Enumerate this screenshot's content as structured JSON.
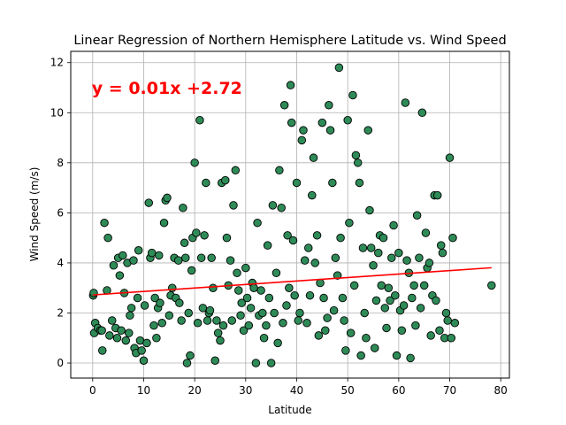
{
  "chart_data": {
    "type": "scatter",
    "title": "Linear Regression of Northern Hemisphere Latitude vs. Wind Speed",
    "xlabel": "Latitude",
    "ylabel": "Wind Speed (m/s)",
    "xlim": [
      -4.3,
      81.7
    ],
    "ylim": [
      -0.6,
      12.45
    ],
    "xticks": [
      0,
      10,
      20,
      30,
      40,
      50,
      60,
      70,
      80
    ],
    "yticks": [
      0,
      2,
      4,
      6,
      8,
      10,
      12
    ],
    "grid": true,
    "annotation": {
      "text": "y = 0.01x +2.72",
      "x": 0,
      "y": 11.0,
      "color": "#ff0000"
    },
    "regression": {
      "slope": 0.0139,
      "intercept": 2.72,
      "x_range": [
        0,
        78.2
      ],
      "color": "#ff0000"
    },
    "point_color": "#2e8b57",
    "point_edge_color": "#000000",
    "points": [
      [
        0.1,
        2.7
      ],
      [
        0.2,
        2.8
      ],
      [
        0.5,
        1.6
      ],
      [
        0.3,
        1.2
      ],
      [
        1.0,
        1.4
      ],
      [
        1.5,
        1.3
      ],
      [
        1.9,
        0.5
      ],
      [
        1.8,
        1.3
      ],
      [
        2.3,
        5.6
      ],
      [
        2.8,
        2.9
      ],
      [
        3.0,
        5.0
      ],
      [
        3.3,
        1.1
      ],
      [
        3.8,
        1.7
      ],
      [
        4.1,
        3.9
      ],
      [
        4.5,
        1.4
      ],
      [
        4.8,
        1.0
      ],
      [
        5.0,
        4.2
      ],
      [
        5.3,
        3.5
      ],
      [
        5.6,
        1.3
      ],
      [
        5.9,
        4.3
      ],
      [
        6.2,
        2.8
      ],
      [
        6.5,
        0.9
      ],
      [
        6.8,
        4.0
      ],
      [
        7.1,
        1.2
      ],
      [
        7.3,
        1.9
      ],
      [
        7.6,
        2.2
      ],
      [
        8.0,
        4.1
      ],
      [
        8.2,
        0.6
      ],
      [
        8.5,
        0.4
      ],
      [
        8.8,
        2.6
      ],
      [
        9.0,
        4.5
      ],
      [
        9.3,
        0.9
      ],
      [
        9.6,
        0.5
      ],
      [
        10.0,
        0.1
      ],
      [
        10.2,
        2.3
      ],
      [
        10.6,
        0.8
      ],
      [
        11.0,
        6.4
      ],
      [
        11.3,
        4.2
      ],
      [
        11.6,
        4.4
      ],
      [
        12.0,
        1.5
      ],
      [
        12.2,
        2.6
      ],
      [
        12.5,
        1.0
      ],
      [
        12.8,
        2.2
      ],
      [
        13.0,
        4.3
      ],
      [
        13.2,
        2.4
      ],
      [
        13.6,
        1.6
      ],
      [
        14.0,
        5.6
      ],
      [
        14.3,
        6.5
      ],
      [
        14.6,
        6.6
      ],
      [
        15.0,
        1.9
      ],
      [
        15.3,
        2.7
      ],
      [
        15.6,
        3.0
      ],
      [
        16.0,
        4.2
      ],
      [
        16.3,
        2.6
      ],
      [
        16.8,
        4.1
      ],
      [
        17.0,
        2.4
      ],
      [
        17.4,
        1.7
      ],
      [
        17.7,
        6.2
      ],
      [
        18.0,
        4.8
      ],
      [
        18.2,
        4.2
      ],
      [
        18.5,
        0.0
      ],
      [
        18.8,
        2.0
      ],
      [
        19.1,
        0.3
      ],
      [
        19.4,
        3.7
      ],
      [
        19.6,
        5.0
      ],
      [
        20.0,
        8.0
      ],
      [
        20.3,
        5.2
      ],
      [
        20.6,
        1.6
      ],
      [
        21.0,
        9.7
      ],
      [
        21.3,
        4.2
      ],
      [
        21.6,
        2.2
      ],
      [
        21.9,
        5.1
      ],
      [
        22.2,
        7.2
      ],
      [
        22.5,
        1.7
      ],
      [
        22.8,
        2.0
      ],
      [
        23.0,
        2.1
      ],
      [
        23.3,
        4.2
      ],
      [
        23.6,
        3.0
      ],
      [
        24.0,
        0.1
      ],
      [
        24.3,
        1.7
      ],
      [
        24.6,
        1.2
      ],
      [
        25.0,
        0.9
      ],
      [
        25.3,
        7.2
      ],
      [
        25.6,
        1.5
      ],
      [
        26.0,
        7.3
      ],
      [
        26.3,
        5.0
      ],
      [
        26.6,
        3.1
      ],
      [
        27.0,
        4.1
      ],
      [
        27.3,
        1.7
      ],
      [
        27.6,
        6.3
      ],
      [
        28.0,
        7.7
      ],
      [
        28.3,
        3.6
      ],
      [
        28.6,
        2.9
      ],
      [
        29.0,
        1.9
      ],
      [
        29.2,
        2.4
      ],
      [
        29.6,
        1.3
      ],
      [
        30.0,
        3.8
      ],
      [
        30.3,
        2.6
      ],
      [
        30.6,
        1.5
      ],
      [
        31.0,
        2.2
      ],
      [
        31.3,
        3.2
      ],
      [
        31.6,
        3.0
      ],
      [
        32.0,
        0.0
      ],
      [
        32.3,
        5.6
      ],
      [
        32.6,
        1.9
      ],
      [
        33.0,
        2.9
      ],
      [
        33.3,
        2.0
      ],
      [
        33.6,
        1.0
      ],
      [
        34.0,
        1.5
      ],
      [
        34.3,
        4.7
      ],
      [
        34.6,
        2.6
      ],
      [
        35.0,
        0.0
      ],
      [
        35.3,
        6.3
      ],
      [
        35.6,
        2.0
      ],
      [
        36.0,
        3.6
      ],
      [
        36.3,
        0.8
      ],
      [
        36.6,
        7.7
      ],
      [
        37.0,
        6.2
      ],
      [
        37.3,
        1.6
      ],
      [
        37.6,
        10.3
      ],
      [
        38.0,
        2.3
      ],
      [
        38.2,
        5.1
      ],
      [
        38.5,
        3.0
      ],
      [
        38.8,
        11.1
      ],
      [
        39.0,
        9.6
      ],
      [
        39.3,
        4.9
      ],
      [
        39.6,
        2.7
      ],
      [
        40.0,
        7.2
      ],
      [
        40.3,
        1.7
      ],
      [
        40.6,
        2.0
      ],
      [
        41.0,
        8.9
      ],
      [
        41.3,
        9.3
      ],
      [
        41.6,
        4.1
      ],
      [
        42.0,
        1.6
      ],
      [
        42.3,
        4.6
      ],
      [
        42.6,
        2.7
      ],
      [
        43.0,
        6.7
      ],
      [
        43.3,
        8.2
      ],
      [
        43.6,
        4.0
      ],
      [
        44.0,
        5.1
      ],
      [
        44.3,
        1.1
      ],
      [
        44.6,
        3.2
      ],
      [
        45.0,
        9.6
      ],
      [
        45.3,
        2.6
      ],
      [
        45.6,
        1.3
      ],
      [
        46.0,
        1.8
      ],
      [
        46.3,
        10.3
      ],
      [
        46.6,
        9.3
      ],
      [
        47.0,
        7.2
      ],
      [
        47.3,
        2.1
      ],
      [
        47.6,
        4.2
      ],
      [
        48.0,
        3.5
      ],
      [
        48.3,
        11.8
      ],
      [
        48.6,
        5.0
      ],
      [
        49.0,
        2.6
      ],
      [
        49.3,
        1.7
      ],
      [
        49.6,
        0.5
      ],
      [
        50.0,
        9.7
      ],
      [
        50.3,
        5.6
      ],
      [
        50.6,
        1.2
      ],
      [
        51.0,
        10.7
      ],
      [
        51.3,
        3.1
      ],
      [
        51.6,
        8.3
      ],
      [
        52.0,
        8.0
      ],
      [
        52.3,
        7.2
      ],
      [
        52.6,
        0.3
      ],
      [
        53.0,
        4.6
      ],
      [
        53.3,
        2.0
      ],
      [
        53.6,
        1.0
      ],
      [
        54.0,
        9.3
      ],
      [
        54.3,
        6.1
      ],
      [
        54.6,
        4.6
      ],
      [
        55.0,
        3.9
      ],
      [
        55.3,
        0.6
      ],
      [
        55.6,
        2.5
      ],
      [
        56.0,
        4.4
      ],
      [
        56.3,
        5.1
      ],
      [
        56.6,
        3.1
      ],
      [
        57.0,
        5.0
      ],
      [
        57.3,
        2.2
      ],
      [
        57.6,
        1.4
      ],
      [
        58.0,
        3.0
      ],
      [
        58.3,
        2.5
      ],
      [
        58.6,
        4.2
      ],
      [
        59.0,
        5.5
      ],
      [
        59.3,
        2.7
      ],
      [
        59.6,
        0.3
      ],
      [
        60.0,
        4.4
      ],
      [
        60.3,
        2.1
      ],
      [
        60.6,
        1.3
      ],
      [
        61.0,
        2.3
      ],
      [
        61.3,
        10.4
      ],
      [
        61.6,
        4.1
      ],
      [
        62.0,
        3.6
      ],
      [
        62.3,
        0.2
      ],
      [
        62.6,
        2.6
      ],
      [
        63.0,
        3.1
      ],
      [
        63.3,
        1.5
      ],
      [
        63.6,
        5.9
      ],
      [
        64.0,
        4.2
      ],
      [
        64.3,
        2.2
      ],
      [
        64.6,
        10.0
      ],
      [
        65.0,
        3.1
      ],
      [
        65.3,
        5.2
      ],
      [
        65.6,
        3.8
      ],
      [
        66.0,
        4.0
      ],
      [
        66.3,
        1.1
      ],
      [
        66.6,
        2.7
      ],
      [
        67.0,
        6.7
      ],
      [
        67.3,
        2.5
      ],
      [
        67.6,
        6.7
      ],
      [
        68.0,
        1.3
      ],
      [
        68.3,
        4.7
      ],
      [
        68.6,
        4.4
      ],
      [
        69.0,
        1.0
      ],
      [
        69.3,
        2.0
      ],
      [
        69.6,
        1.7
      ],
      [
        70.0,
        8.2
      ],
      [
        70.3,
        1.0
      ],
      [
        70.6,
        5.0
      ],
      [
        71.0,
        1.6
      ],
      [
        78.2,
        3.1
      ]
    ]
  }
}
